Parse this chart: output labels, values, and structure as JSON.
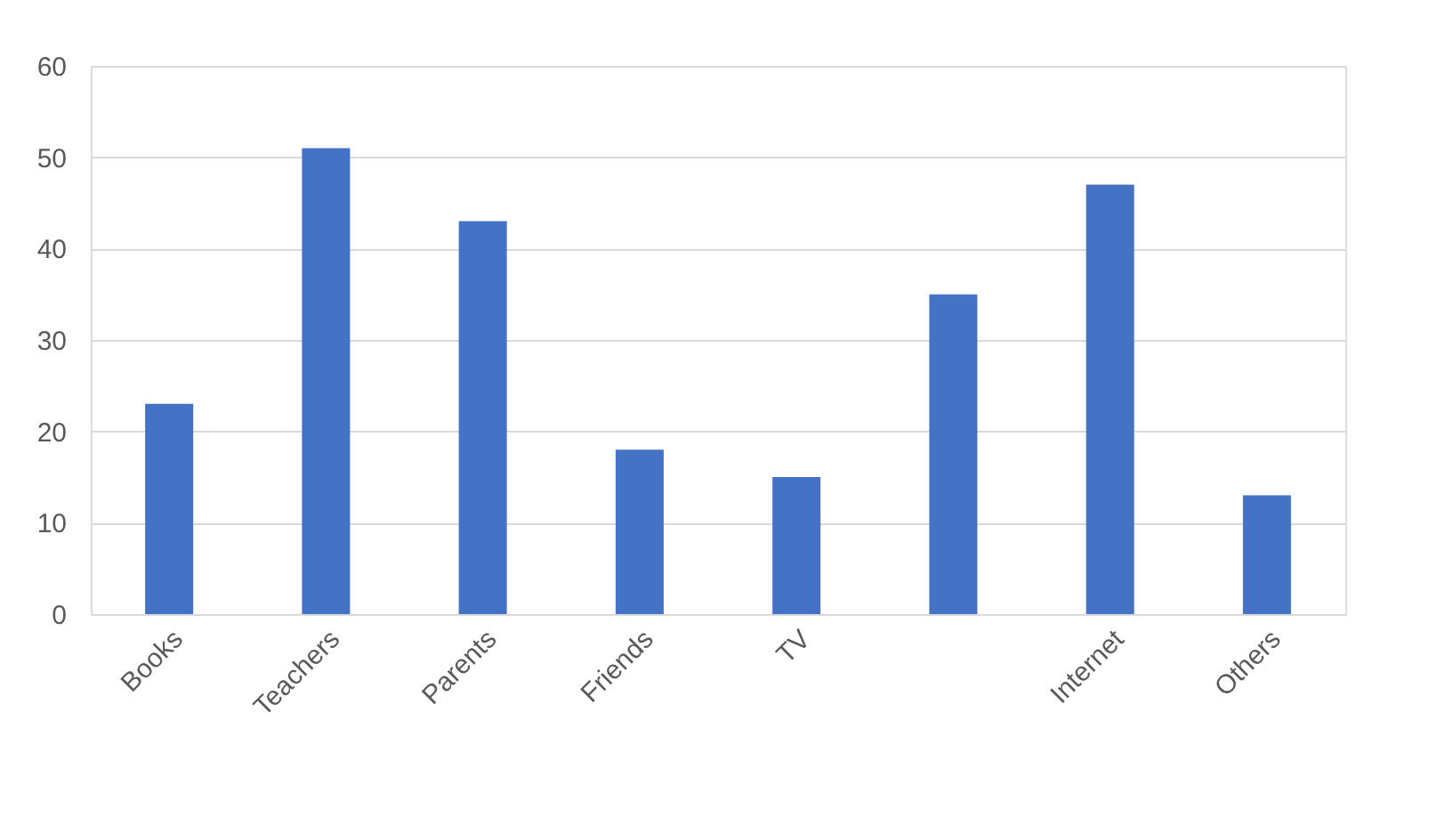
{
  "chart_data": {
    "type": "bar",
    "categories": [
      "Books",
      "Teachers",
      "Parents",
      "Friends",
      "TV",
      null,
      "Internet",
      "Others"
    ],
    "values": [
      23,
      51,
      43,
      18,
      15,
      35,
      47,
      13
    ],
    "color": "#4472c4",
    "ylim": [
      0,
      60
    ],
    "yticks": [
      0,
      10,
      20,
      30,
      40,
      50,
      60
    ],
    "grid": "y"
  }
}
